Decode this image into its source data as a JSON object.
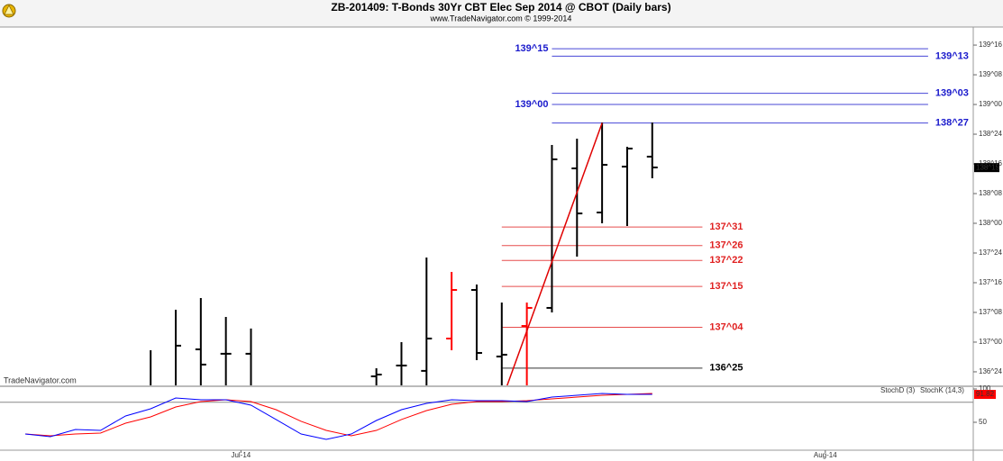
{
  "chart_data": [
    {
      "type": "ohlc",
      "title": "ZB-201409:  T-Bonds 30Yr CBT Elec Sep 2014 @ CBOT  (Daily bars)",
      "subtitle": "www.TradeNavigator.com © 1999-2014",
      "watermark": "TradeNavigator.com",
      "xlim": [
        -1.007,
        37.8
      ],
      "xticks": [
        {
          "value": 8.6,
          "label": "Jul-14"
        },
        {
          "value": 31.9,
          "label": "Aug-14"
        }
      ],
      "ylim": [
        136.636,
        139.652
      ],
      "yticks": [
        {
          "value": 136.75,
          "label": "136^24"
        },
        {
          "value": 137.0,
          "label": "137^00"
        },
        {
          "value": 137.25,
          "label": "137^08"
        },
        {
          "value": 137.5,
          "label": "137^16"
        },
        {
          "value": 137.75,
          "label": "137^24"
        },
        {
          "value": 138.0,
          "label": "138^00"
        },
        {
          "value": 138.25,
          "label": "138^08"
        },
        {
          "value": 138.5,
          "label": "138^16"
        },
        {
          "value": 138.75,
          "label": "138^24"
        },
        {
          "value": 139.0,
          "label": "139^00"
        },
        {
          "value": 139.25,
          "label": "139^08"
        },
        {
          "value": 139.5,
          "label": "139^16"
        }
      ],
      "x": [
        5,
        6,
        7,
        8,
        9,
        14,
        15,
        16,
        17,
        18,
        19,
        20,
        21,
        22,
        23,
        24,
        25
      ],
      "open": [
        136.6,
        136.6,
        136.939,
        136.902,
        136.902,
        136.712,
        136.803,
        136.758,
        137.03,
        137.439,
        136.879,
        137.136,
        137.288,
        138.462,
        138.091,
        138.477,
        138.561
      ],
      "high": [
        136.932,
        137.273,
        137.371,
        137.212,
        137.114,
        136.78,
        137.0,
        137.712,
        137.591,
        137.485,
        137.333,
        137.333,
        138.659,
        138.712,
        138.848,
        138.644,
        138.848
      ],
      "low": [
        136.55,
        136.55,
        136.55,
        136.55,
        136.55,
        136.55,
        136.55,
        136.55,
        136.932,
        136.848,
        136.55,
        136.55,
        137.25,
        137.72,
        138.0,
        137.977,
        138.379
      ],
      "close": [
        136.6,
        136.97,
        136.811,
        136.902,
        136.6,
        136.727,
        136.803,
        137.03,
        137.439,
        136.909,
        136.894,
        137.288,
        138.538,
        138.083,
        138.492,
        138.629,
        138.47
      ],
      "colors": [
        "#000000",
        "#000000",
        "#000000",
        "#000000",
        "#000000",
        "#000000",
        "#000000",
        "#000000",
        "#ff0000",
        "#000000",
        "#000000",
        "#ff0000",
        "#000000",
        "#000000",
        "#000000",
        "#000000",
        "#000000"
      ],
      "trendline": {
        "x": [
          19,
          23
        ],
        "values": [
          136.51,
          138.84375
        ],
        "color": "#e00000"
      },
      "levels": [
        {
          "label": "139^15",
          "value": 139.46875,
          "color": "#1a1acc",
          "label_side": "left",
          "x_range": [
            21,
            36
          ]
        },
        {
          "label": "139^13",
          "value": 139.40625,
          "color": "#1a1acc",
          "label_side": "right",
          "x_range": [
            21,
            36
          ]
        },
        {
          "label": "139^03",
          "value": 139.09375,
          "color": "#1a1acc",
          "label_side": "right",
          "x_range": [
            21,
            36
          ]
        },
        {
          "label": "139^00",
          "value": 139.0,
          "color": "#1a1acc",
          "label_side": "left",
          "x_range": [
            21,
            36
          ]
        },
        {
          "label": "138^27",
          "value": 138.84375,
          "color": "#1a1acc",
          "label_side": "right",
          "x_range": [
            21,
            36
          ]
        },
        {
          "label": "137^31",
          "value": 137.96875,
          "color": "#e02020",
          "label_side": "right",
          "x_range": [
            19,
            27
          ]
        },
        {
          "label": "137^26",
          "value": 137.8125,
          "color": "#e02020",
          "label_side": "right",
          "x_range": [
            19,
            27
          ]
        },
        {
          "label": "137^22",
          "value": 137.6875,
          "color": "#e02020",
          "label_side": "right",
          "x_range": [
            19,
            27
          ]
        },
        {
          "label": "137^15",
          "value": 137.46875,
          "color": "#e02020",
          "label_side": "right",
          "x_range": [
            19,
            27
          ]
        },
        {
          "label": "137^04",
          "value": 137.125,
          "color": "#e02020",
          "label_side": "right",
          "x_range": [
            19,
            27
          ]
        },
        {
          "label": "136^25",
          "value": 136.78125,
          "color": "#000000",
          "label_side": "right",
          "x_range": [
            19,
            27
          ]
        }
      ],
      "last_price": {
        "value": 138.46875,
        "label": "138^15"
      }
    },
    {
      "type": "line",
      "xlim": [
        -1.007,
        37.8
      ],
      "ylim": [
        8.1,
        102.7
      ],
      "yticks": [
        100,
        50
      ],
      "hlines": [
        80
      ],
      "x": [
        0,
        1,
        2,
        3,
        4,
        5,
        6,
        7,
        8,
        9,
        10,
        11,
        12,
        13,
        14,
        15,
        16,
        17,
        18,
        19,
        20,
        21,
        22,
        23,
        24,
        25
      ],
      "series": [
        {
          "name": "StochD (3)",
          "color": "#ff0000",
          "values": [
            32.4,
            29.7,
            32.4,
            33.8,
            48.6,
            58.1,
            73.0,
            81.1,
            83.8,
            81.1,
            68.9,
            51.4,
            37.8,
            29.7,
            37.8,
            54.1,
            67.6,
            77.0,
            81.1,
            81.1,
            82.4,
            85.1,
            87.8,
            90.5,
            91.9,
            93.2
          ]
        },
        {
          "name": "StochK (14,3)",
          "color": "#0000ff",
          "values": [
            32.4,
            28.4,
            39.2,
            37.8,
            59.5,
            70.3,
            86.5,
            83.8,
            83.8,
            75.7,
            54.1,
            32.4,
            24.3,
            32.4,
            52.7,
            68.9,
            78.4,
            83.8,
            82.4,
            82.4,
            81.1,
            87.8,
            90.5,
            93.2,
            91.9,
            91.82
          ]
        }
      ]
    }
  ]
}
